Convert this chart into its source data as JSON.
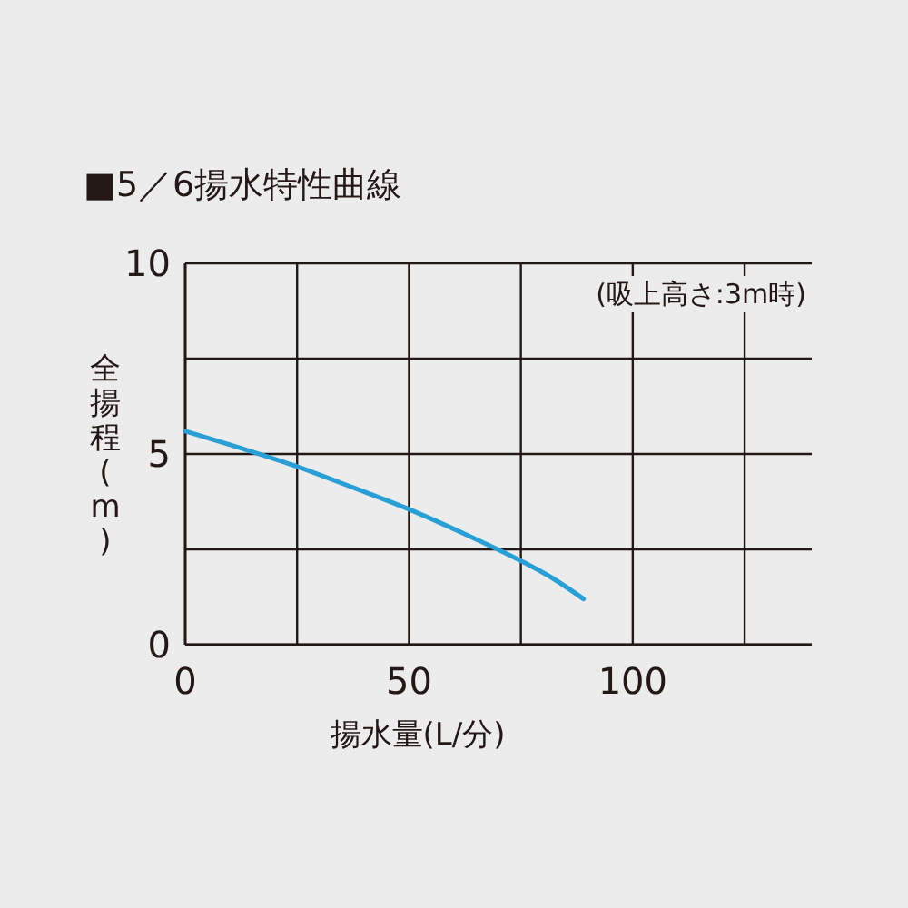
{
  "chart_data": {
    "type": "line",
    "title": "■5／6揚水特性曲線",
    "xlabel": "揚水量(L/分)",
    "ylabel": "全揚程(m)",
    "annotations": [
      "(吸上高さ:3m時)"
    ],
    "series": [
      {
        "color": "#2a9fd6",
        "x": [
          0,
          12.5,
          25,
          37.5,
          50,
          62.5,
          75,
          82,
          89
        ],
        "values": [
          5.6,
          5.15,
          4.67,
          4.12,
          3.55,
          2.9,
          2.2,
          1.75,
          1.2
        ]
      }
    ],
    "xlim": [
      0,
      140
    ],
    "ylim": [
      0,
      10
    ],
    "xticks": [
      0,
      {
        "value": 25,
        "label": null
      },
      50,
      {
        "value": 75,
        "label": null
      },
      100,
      {
        "value": 125,
        "label": null
      }
    ],
    "yticks": [
      0,
      {
        "value": 2.5,
        "label": null
      },
      5,
      {
        "value": 7.5,
        "label": null
      },
      10
    ],
    "grid": true,
    "marker": "none",
    "line_style": "solid"
  }
}
